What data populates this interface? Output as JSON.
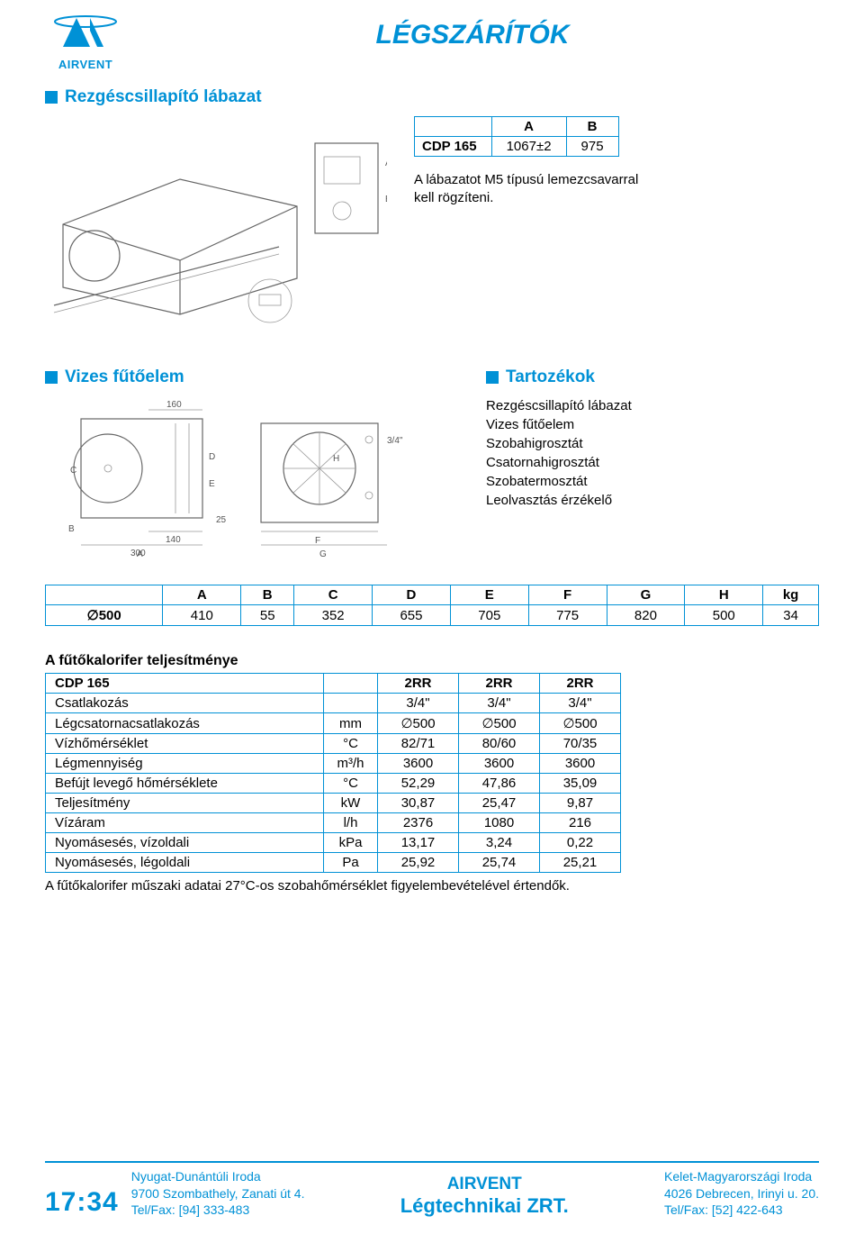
{
  "title": "LÉGSZÁRÍTÓK",
  "logo_text": "AIRVENT",
  "logo_color": "#0091d6",
  "section1": {
    "heading": "Rezgéscsillapító lábazat",
    "table": {
      "headers": [
        "",
        "A",
        "B"
      ],
      "row_label": "CDP 165",
      "a": "1067±2",
      "b": "975"
    },
    "note_line1": "A lábazatot M5 típusú lemezcsavarral",
    "note_line2": "kell rögzíteni."
  },
  "section2": {
    "heading": "Vizes fűtőelem"
  },
  "section3": {
    "heading": "Tartozékok",
    "items": [
      "Rezgéscsillapító lábazat",
      "Vizes fűtőelem",
      "Szobahigrosztát",
      "Csatornahigrosztát",
      "Szobatermosztát",
      "Leolvasztás érzékelő"
    ]
  },
  "dims": {
    "headers": [
      "",
      "A",
      "B",
      "C",
      "D",
      "E",
      "F",
      "G",
      "H",
      "kg"
    ],
    "row_label": "∅500",
    "values": [
      "410",
      "55",
      "352",
      "655",
      "705",
      "775",
      "820",
      "500",
      "34"
    ]
  },
  "perf": {
    "heading": "A fűtőkalorifer teljesítménye",
    "head_row": [
      "CDP 165",
      "",
      "2RR",
      "2RR",
      "2RR"
    ],
    "rows": [
      {
        "label": "Csatlakozás",
        "unit": "",
        "v": [
          "3/4\"",
          "3/4\"",
          "3/4\""
        ]
      },
      {
        "label": "Légcsatornacsatlakozás",
        "unit": "mm",
        "v": [
          "∅500",
          "∅500",
          "∅500"
        ]
      },
      {
        "label": "Vízhőmérséklet",
        "unit": "°C",
        "v": [
          "82/71",
          "80/60",
          "70/35"
        ]
      },
      {
        "label": "Légmennyiség",
        "unit": "m³/h",
        "v": [
          "3600",
          "3600",
          "3600"
        ]
      },
      {
        "label": "Befújt levegő hőmérséklete",
        "unit": "°C",
        "v": [
          "52,29",
          "47,86",
          "35,09"
        ]
      },
      {
        "label": "Teljesítmény",
        "unit": "kW",
        "v": [
          "30,87",
          "25,47",
          "9,87"
        ]
      },
      {
        "label": "Vízáram",
        "unit": "l/h",
        "v": [
          "2376",
          "1080",
          "216"
        ]
      },
      {
        "label": "Nyomásesés, vízoldali",
        "unit": "kPa",
        "v": [
          "13,17",
          "3,24",
          "0,22"
        ]
      },
      {
        "label": "Nyomásesés, légoldali",
        "unit": "Pa",
        "v": [
          "25,92",
          "25,74",
          "25,21"
        ]
      }
    ],
    "footnote": "A fűtőkalorifer műszaki adatai 27°C-os szobahőmérséklet figyelembevételével értendők."
  },
  "footer": {
    "page": "17:34",
    "left": {
      "l1": "Nyugat-Dunántúli Iroda",
      "l2": "9700 Szombathely, Zanati út 4.",
      "l3": "Tel/Fax: [94] 333-483"
    },
    "center": {
      "brand": "AIRVENT",
      "sub": "Légtechnikai ZRT."
    },
    "right": {
      "l1": "Kelet-Magyarországi Iroda",
      "l2": "4026 Debrecen, Irinyi u. 20.",
      "l3": "Tel/Fax: [52] 422-643"
    }
  },
  "diagram2_labels": {
    "v160": "160",
    "v140": "140",
    "v300": "300",
    "v25": "25",
    "pipe": "3/4\""
  }
}
